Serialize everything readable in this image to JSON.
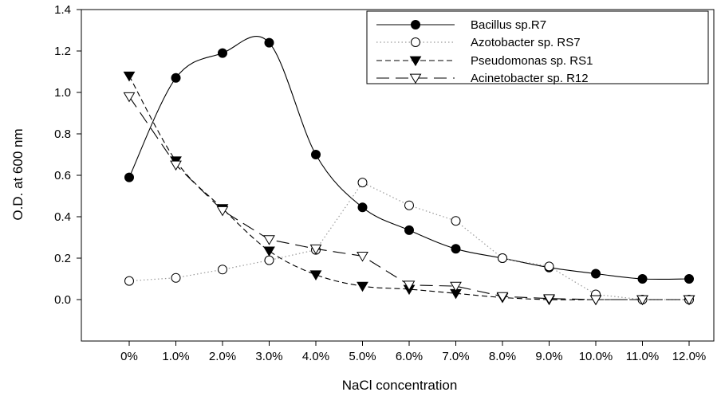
{
  "chart_data": {
    "type": "line",
    "title": "",
    "xlabel": "NaCl concentration",
    "ylabel": "O.D. at 600 nm",
    "categories": [
      "0%",
      "1.0%",
      "2.0%",
      "3.0%",
      "4.0%",
      "5.0%",
      "6.0%",
      "7.0%",
      "8.0%",
      "9.0%",
      "10.0%",
      "11.0%",
      "12.0%"
    ],
    "ylim": [
      -0.2,
      1.4
    ],
    "yticks": [
      "0.0",
      "0.2",
      "0.4",
      "0.6",
      "0.8",
      "1.0",
      "1.2",
      "1.4"
    ],
    "grid": false,
    "legend_position": "top-right",
    "series": [
      {
        "name": "Bacillus sp.R7",
        "marker": "filled-circle",
        "line": "solid",
        "smooth": true,
        "color": "#000000",
        "values": [
          0.59,
          1.07,
          1.19,
          1.24,
          0.7,
          0.445,
          0.335,
          0.245,
          0.2,
          0.155,
          0.125,
          0.1,
          0.1
        ]
      },
      {
        "name": "Azotobacter sp. RS7",
        "marker": "open-circle",
        "line": "dotted",
        "smooth": false,
        "color": "#9a9a9a",
        "values": [
          0.09,
          0.105,
          0.145,
          0.19,
          0.24,
          0.565,
          0.455,
          0.38,
          0.2,
          0.16,
          0.025,
          0.0,
          0.0
        ]
      },
      {
        "name": "Pseudomonas sp. RS1",
        "marker": "filled-triangle-down",
        "line": "short-dash",
        "smooth": true,
        "color": "#000000",
        "values": [
          1.08,
          0.67,
          0.44,
          0.235,
          0.12,
          0.065,
          0.05,
          0.03,
          0.01,
          0.0,
          0.0,
          0.0,
          0.0
        ]
      },
      {
        "name": "Acinetobacter sp. R12",
        "marker": "open-triangle-down",
        "line": "long-dash",
        "smooth": false,
        "color": "#000000",
        "values": [
          0.98,
          0.65,
          0.43,
          0.29,
          0.245,
          0.21,
          0.07,
          0.065,
          0.015,
          0.005,
          0.0,
          0.0,
          0.0
        ]
      }
    ]
  }
}
